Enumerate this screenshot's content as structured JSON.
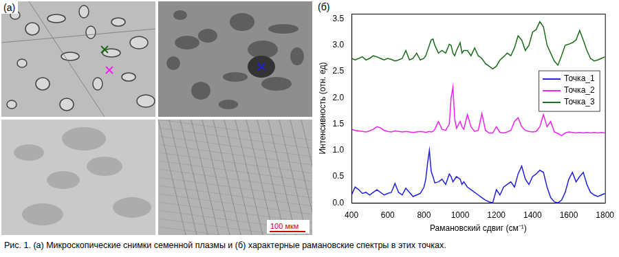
{
  "figure": {
    "panel_labels": [
      "(а)",
      "(б)"
    ],
    "scale_bar": "100 мкм",
    "caption": "Рис. 1. (а) Микроскопические снимки семенной плазмы и (б) характерные рамановские спектры в этих точках."
  },
  "chart_data": {
    "type": "line",
    "xlabel": "Рамановский сдвиг (см⁻¹)",
    "ylabel": "Интенсивность (отн. ед)",
    "x": [
      400,
      420,
      440,
      460,
      480,
      500,
      520,
      540,
      560,
      580,
      600,
      620,
      640,
      660,
      680,
      700,
      720,
      740,
      760,
      780,
      800,
      810,
      820,
      830,
      840,
      850,
      860,
      880,
      900,
      920,
      940,
      950,
      960,
      970,
      980,
      1000,
      1010,
      1020,
      1040,
      1060,
      1080,
      1100,
      1120,
      1140,
      1160,
      1180,
      1200,
      1220,
      1240,
      1260,
      1280,
      1300,
      1320,
      1340,
      1360,
      1380,
      1400,
      1420,
      1440,
      1460,
      1480,
      1500,
      1520,
      1540,
      1560,
      1580,
      1600,
      1620,
      1640,
      1660,
      1680,
      1700,
      1720,
      1740,
      1760,
      1780,
      1800
    ],
    "series": [
      {
        "name": "Точка_1",
        "color": "#1f1fe0",
        "values": [
          0.15,
          0.3,
          0.25,
          0.18,
          0.2,
          0.15,
          0.2,
          0.25,
          0.2,
          0.15,
          0.18,
          0.2,
          0.37,
          0.2,
          0.15,
          0.28,
          0.2,
          0.12,
          0.15,
          0.18,
          0.3,
          0.45,
          0.75,
          1.0,
          0.6,
          0.5,
          0.38,
          0.4,
          0.45,
          0.35,
          0.55,
          0.5,
          0.4,
          0.45,
          0.5,
          0.45,
          0.35,
          0.4,
          0.3,
          0.25,
          0.2,
          0.15,
          0.1,
          0.05,
          0.02,
          0.0,
          0.25,
          0.15,
          0.3,
          0.35,
          0.4,
          0.3,
          0.55,
          0.7,
          0.45,
          0.35,
          0.5,
          0.55,
          0.62,
          0.58,
          0.3,
          0.1,
          0.02,
          0.0,
          0.05,
          0.2,
          0.45,
          0.58,
          0.4,
          0.5,
          0.58,
          0.35,
          0.2,
          0.15,
          0.12,
          0.15,
          0.18
        ]
      },
      {
        "name": "Точка_2",
        "color": "#ee22ee",
        "values": [
          1.4,
          1.38,
          1.37,
          1.36,
          1.35,
          1.37,
          1.4,
          1.45,
          1.43,
          1.38,
          1.36,
          1.35,
          1.37,
          1.36,
          1.35,
          1.36,
          1.35,
          1.34,
          1.35,
          1.36,
          1.35,
          1.34,
          1.35,
          1.36,
          1.35,
          1.36,
          1.4,
          1.55,
          1.4,
          1.38,
          1.5,
          2.0,
          2.2,
          1.6,
          1.42,
          1.55,
          1.45,
          1.4,
          1.68,
          1.45,
          1.36,
          1.38,
          1.7,
          1.38,
          1.33,
          1.33,
          1.45,
          1.34,
          1.33,
          1.35,
          1.38,
          1.55,
          1.62,
          1.45,
          1.38,
          1.36,
          1.35,
          1.36,
          1.45,
          1.68,
          1.45,
          1.55,
          1.35,
          1.32,
          1.28,
          1.33,
          1.35,
          1.34,
          1.33,
          1.34,
          1.33,
          1.34,
          1.33,
          1.34,
          1.33,
          1.34,
          1.33
        ]
      },
      {
        "name": "Точка_3",
        "color": "#1a6b1a",
        "values": [
          2.75,
          2.72,
          2.75,
          2.78,
          2.72,
          2.75,
          2.8,
          2.78,
          2.75,
          2.72,
          2.75,
          2.73,
          2.7,
          2.72,
          2.75,
          2.9,
          2.72,
          2.75,
          2.85,
          2.72,
          2.75,
          2.8,
          2.9,
          3.0,
          3.1,
          3.12,
          3.0,
          2.85,
          2.9,
          2.85,
          3.02,
          3.0,
          2.85,
          2.8,
          2.9,
          3.05,
          2.85,
          2.9,
          2.9,
          2.8,
          2.95,
          2.8,
          2.75,
          2.65,
          2.6,
          2.55,
          2.6,
          2.72,
          2.78,
          2.85,
          2.8,
          2.95,
          3.18,
          3.1,
          2.9,
          3.0,
          3.25,
          3.3,
          3.45,
          3.35,
          3.0,
          2.85,
          2.7,
          2.62,
          2.8,
          3.0,
          3.02,
          3.05,
          3.1,
          3.28,
          3.1,
          2.9,
          2.75,
          2.7,
          2.72,
          2.75,
          2.78
        ]
      }
    ],
    "xlim": [
      400,
      1800
    ],
    "xticks": [
      400,
      600,
      800,
      1000,
      1200,
      1400,
      1600,
      1800
    ],
    "ylim": [
      0,
      3.6
    ],
    "yticks": [
      {
        "value": 0,
        "label": "0.0"
      },
      0.5,
      {
        "value": 1,
        "label": "1.0"
      },
      1.5,
      {
        "value": 2,
        "label": "2.0"
      },
      2.5,
      {
        "value": 3,
        "label": "3.0"
      },
      3.5
    ],
    "grid": false,
    "legend": "right"
  }
}
